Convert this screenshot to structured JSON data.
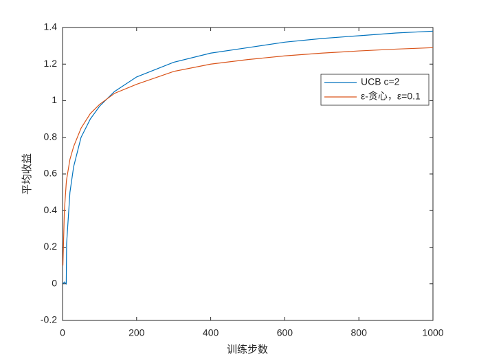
{
  "chart_data": {
    "type": "line",
    "xlabel": "训练步数",
    "ylabel": "平均收益",
    "x": [
      1,
      5,
      10,
      11,
      20,
      30,
      50,
      75,
      100,
      140,
      200,
      300,
      400,
      500,
      600,
      700,
      800,
      900,
      1000
    ],
    "series": [
      {
        "name": "UCB c=2",
        "color": "#0072BD",
        "values": [
          0,
          0.01,
          0,
          0.22,
          0.5,
          0.64,
          0.8,
          0.9,
          0.97,
          1.05,
          1.13,
          1.21,
          1.26,
          1.29,
          1.32,
          1.34,
          1.355,
          1.37,
          1.38
        ]
      },
      {
        "name": "ε-贪心，ε=0.1",
        "color": "#D95319",
        "values": [
          0.1,
          0.4,
          0.55,
          0.57,
          0.68,
          0.75,
          0.85,
          0.93,
          0.98,
          1.04,
          1.09,
          1.16,
          1.2,
          1.225,
          1.245,
          1.26,
          1.272,
          1.282,
          1.29
        ]
      }
    ],
    "xlim": [
      0,
      1000
    ],
    "xticks": [
      0,
      200,
      400,
      600,
      800,
      1000
    ],
    "ylim": [
      -0.2,
      1.4
    ],
    "yticks": [
      -0.2,
      0,
      0.2,
      0.4,
      0.6,
      0.8,
      1,
      1.2,
      1.4
    ],
    "grid": false,
    "legend": "northeast"
  }
}
